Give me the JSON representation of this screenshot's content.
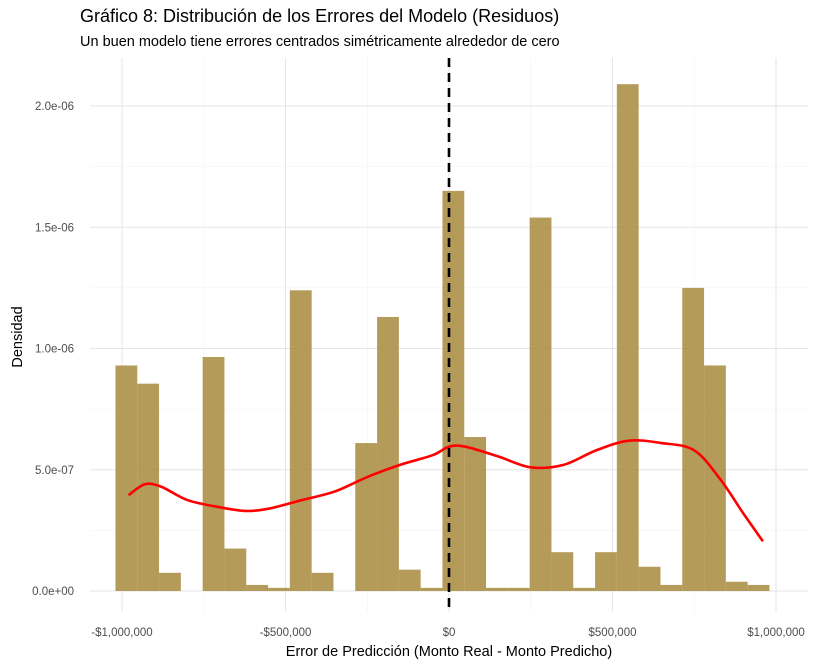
{
  "chart_data": {
    "type": "bar",
    "title": "Gráfico 8: Distribución de los Errores del Modelo (Residuos)",
    "subtitle": "Un buen modelo tiene errores centrados simétricamente alrededor de cero",
    "xlabel": "Error de Predicción (Monto Real - Monto Predicho)",
    "ylabel": "Densidad",
    "xlim": [
      -1100000,
      1100000
    ],
    "ylim": [
      0,
      2e-06
    ],
    "x_ticks": [
      {
        "value": -1000000,
        "label": "-$1,000,000"
      },
      {
        "value": -500000,
        "label": "-$500,000"
      },
      {
        "value": 0,
        "label": "$0"
      },
      {
        "value": 500000,
        "label": "$500,000"
      },
      {
        "value": 1000000,
        "label": "$1,000,000"
      }
    ],
    "y_ticks": [
      {
        "value": 0,
        "label": "0.0e+00"
      },
      {
        "value": 5e-07,
        "label": "5.0e-07"
      },
      {
        "value": 1e-06,
        "label": "1.0e-06"
      },
      {
        "value": 1.5e-06,
        "label": "1.5e-06"
      },
      {
        "value": 2e-06,
        "label": "2.0e-06"
      }
    ],
    "grid": true,
    "bin_width": 66700,
    "histogram_color": "#A8893D",
    "histogram": [
      {
        "x0": -1020000,
        "x1": -953300,
        "density": 9.3e-07
      },
      {
        "x0": -953300,
        "x1": -886700,
        "density": 8.55e-07
      },
      {
        "x0": -886700,
        "x1": -820000,
        "density": 7.5e-08
      },
      {
        "x0": -753300,
        "x1": -686700,
        "density": 9.65e-07
      },
      {
        "x0": -686700,
        "x1": -620000,
        "density": 1.75e-07
      },
      {
        "x0": -620000,
        "x1": -553300,
        "density": 2.5e-08
      },
      {
        "x0": -553300,
        "x1": -486700,
        "density": 1.3e-08
      },
      {
        "x0": -486700,
        "x1": -420000,
        "density": 1.24e-06
      },
      {
        "x0": -420000,
        "x1": -353300,
        "density": 7.5e-08
      },
      {
        "x0": -286700,
        "x1": -220000,
        "density": 6.1e-07
      },
      {
        "x0": -220000,
        "x1": -153300,
        "density": 1.13e-06
      },
      {
        "x0": -153300,
        "x1": -86700,
        "density": 8.8e-08
      },
      {
        "x0": -86700,
        "x1": -20000,
        "density": 1.3e-08
      },
      {
        "x0": -20000,
        "x1": 46700,
        "density": 1.65e-06
      },
      {
        "x0": 46700,
        "x1": 113300,
        "density": 6.35e-07
      },
      {
        "x0": 113300,
        "x1": 180000,
        "density": 1.3e-08
      },
      {
        "x0": 180000,
        "x1": 246700,
        "density": 1.3e-08
      },
      {
        "x0": 246700,
        "x1": 313300,
        "density": 1.54e-06
      },
      {
        "x0": 313300,
        "x1": 380000,
        "density": 1.6e-07
      },
      {
        "x0": 380000,
        "x1": 446700,
        "density": 1.3e-08
      },
      {
        "x0": 446700,
        "x1": 513300,
        "density": 1.6e-07
      },
      {
        "x0": 513300,
        "x1": 580000,
        "density": 2.09e-06
      },
      {
        "x0": 580000,
        "x1": 646700,
        "density": 1e-07
      },
      {
        "x0": 646700,
        "x1": 713300,
        "density": 2.5e-08
      },
      {
        "x0": 713300,
        "x1": 780000,
        "density": 1.25e-06
      },
      {
        "x0": 780000,
        "x1": 846700,
        "density": 9.3e-07
      },
      {
        "x0": 846700,
        "x1": 913300,
        "density": 3.8e-08
      },
      {
        "x0": 913300,
        "x1": 980000,
        "density": 2.5e-08
      }
    ],
    "density_curve": {
      "color": "#FF0000",
      "points": [
        [
          -980000,
          3.95e-07
        ],
        [
          -930000,
          4.4e-07
        ],
        [
          -880000,
          4.3e-07
        ],
        [
          -800000,
          3.75e-07
        ],
        [
          -700000,
          3.45e-07
        ],
        [
          -620000,
          3.3e-07
        ],
        [
          -550000,
          3.4e-07
        ],
        [
          -450000,
          3.75e-07
        ],
        [
          -350000,
          4.1e-07
        ],
        [
          -250000,
          4.7e-07
        ],
        [
          -150000,
          5.2e-07
        ],
        [
          -50000,
          5.6e-07
        ],
        [
          0,
          5.95e-07
        ],
        [
          50000,
          5.95e-07
        ],
        [
          150000,
          5.55e-07
        ],
        [
          250000,
          5.1e-07
        ],
        [
          350000,
          5.2e-07
        ],
        [
          450000,
          5.8e-07
        ],
        [
          550000,
          6.2e-07
        ],
        [
          650000,
          6.1e-07
        ],
        [
          750000,
          5.8e-07
        ],
        [
          830000,
          4.6e-07
        ],
        [
          900000,
          3.2e-07
        ],
        [
          960000,
          2.05e-07
        ]
      ]
    },
    "reference_line": {
      "x": 0,
      "style": "dashed",
      "color": "#000000"
    }
  }
}
